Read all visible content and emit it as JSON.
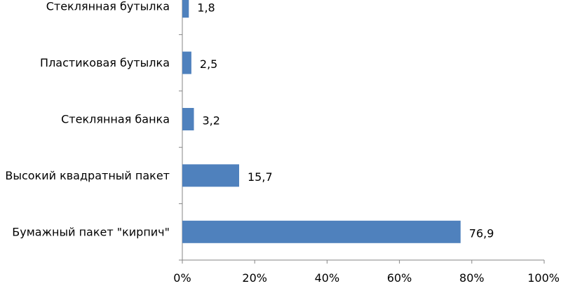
{
  "chart_data": {
    "type": "bar",
    "orientation": "horizontal",
    "title": "",
    "xlabel": "",
    "ylabel": "",
    "xlim": [
      0,
      100
    ],
    "x_ticks": [
      "0%",
      "20%",
      "40%",
      "60%",
      "80%",
      "100%"
    ],
    "x_tick_values": [
      0,
      20,
      40,
      60,
      80,
      100
    ],
    "grid": false,
    "legend": "none",
    "bar_color": "#4f81bd",
    "categories": [
      "Стеклянная бутылка",
      "Пластиковая бутылка",
      "Стеклянная банка",
      "Высокий квадратный пакет",
      "Бумажный пакет \"кирпич\""
    ],
    "values": [
      1.8,
      2.5,
      3.2,
      15.7,
      76.9
    ],
    "value_labels": [
      "1,8",
      "2,5",
      "3,2",
      "15,7",
      "76,9"
    ]
  }
}
